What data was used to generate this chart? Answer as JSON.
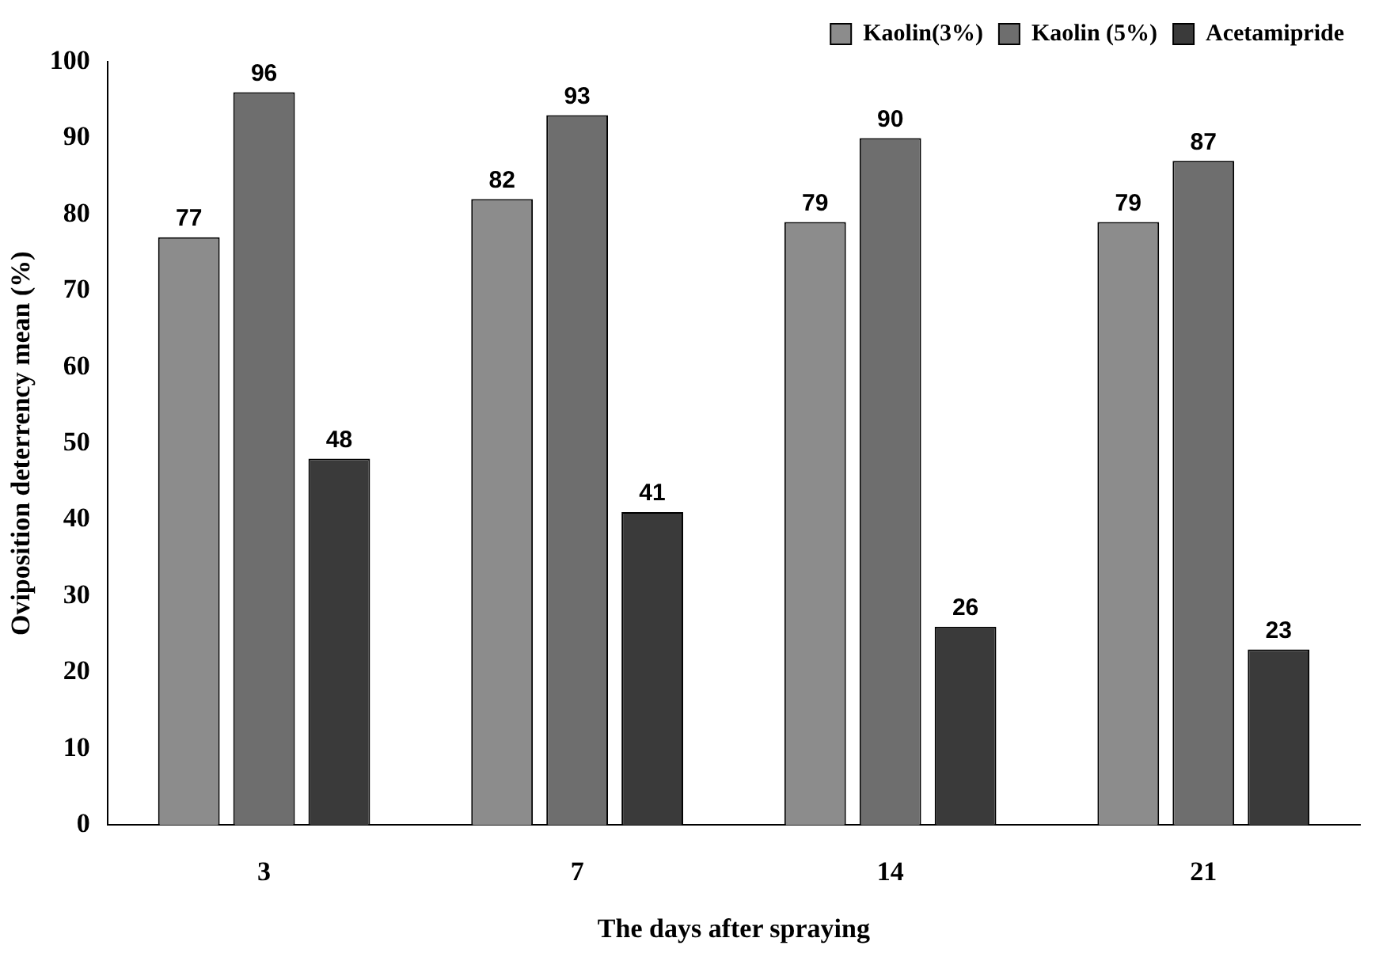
{
  "chart_data": {
    "type": "bar",
    "xlabel": "The days after spraying",
    "ylabel": "Oviposition deterrency mean (%)",
    "categories": [
      "3",
      "7",
      "14",
      "21"
    ],
    "series": [
      {
        "name": "Kaolin(3%)",
        "color": "#8c8c8c",
        "values": [
          77,
          82,
          79,
          79
        ]
      },
      {
        "name": "Kaolin (5%)",
        "color": "#6e6e6e",
        "values": [
          96,
          93,
          90,
          87
        ]
      },
      {
        "name": "Acetamipride",
        "color": "#3a3a3a",
        "values": [
          48,
          41,
          26,
          23
        ]
      }
    ],
    "ylim": [
      0,
      100
    ],
    "yticks": [
      0,
      10,
      20,
      30,
      40,
      50,
      60,
      70,
      80,
      90,
      100
    ],
    "grid": false,
    "legend": "top right",
    "data_labels": true
  }
}
